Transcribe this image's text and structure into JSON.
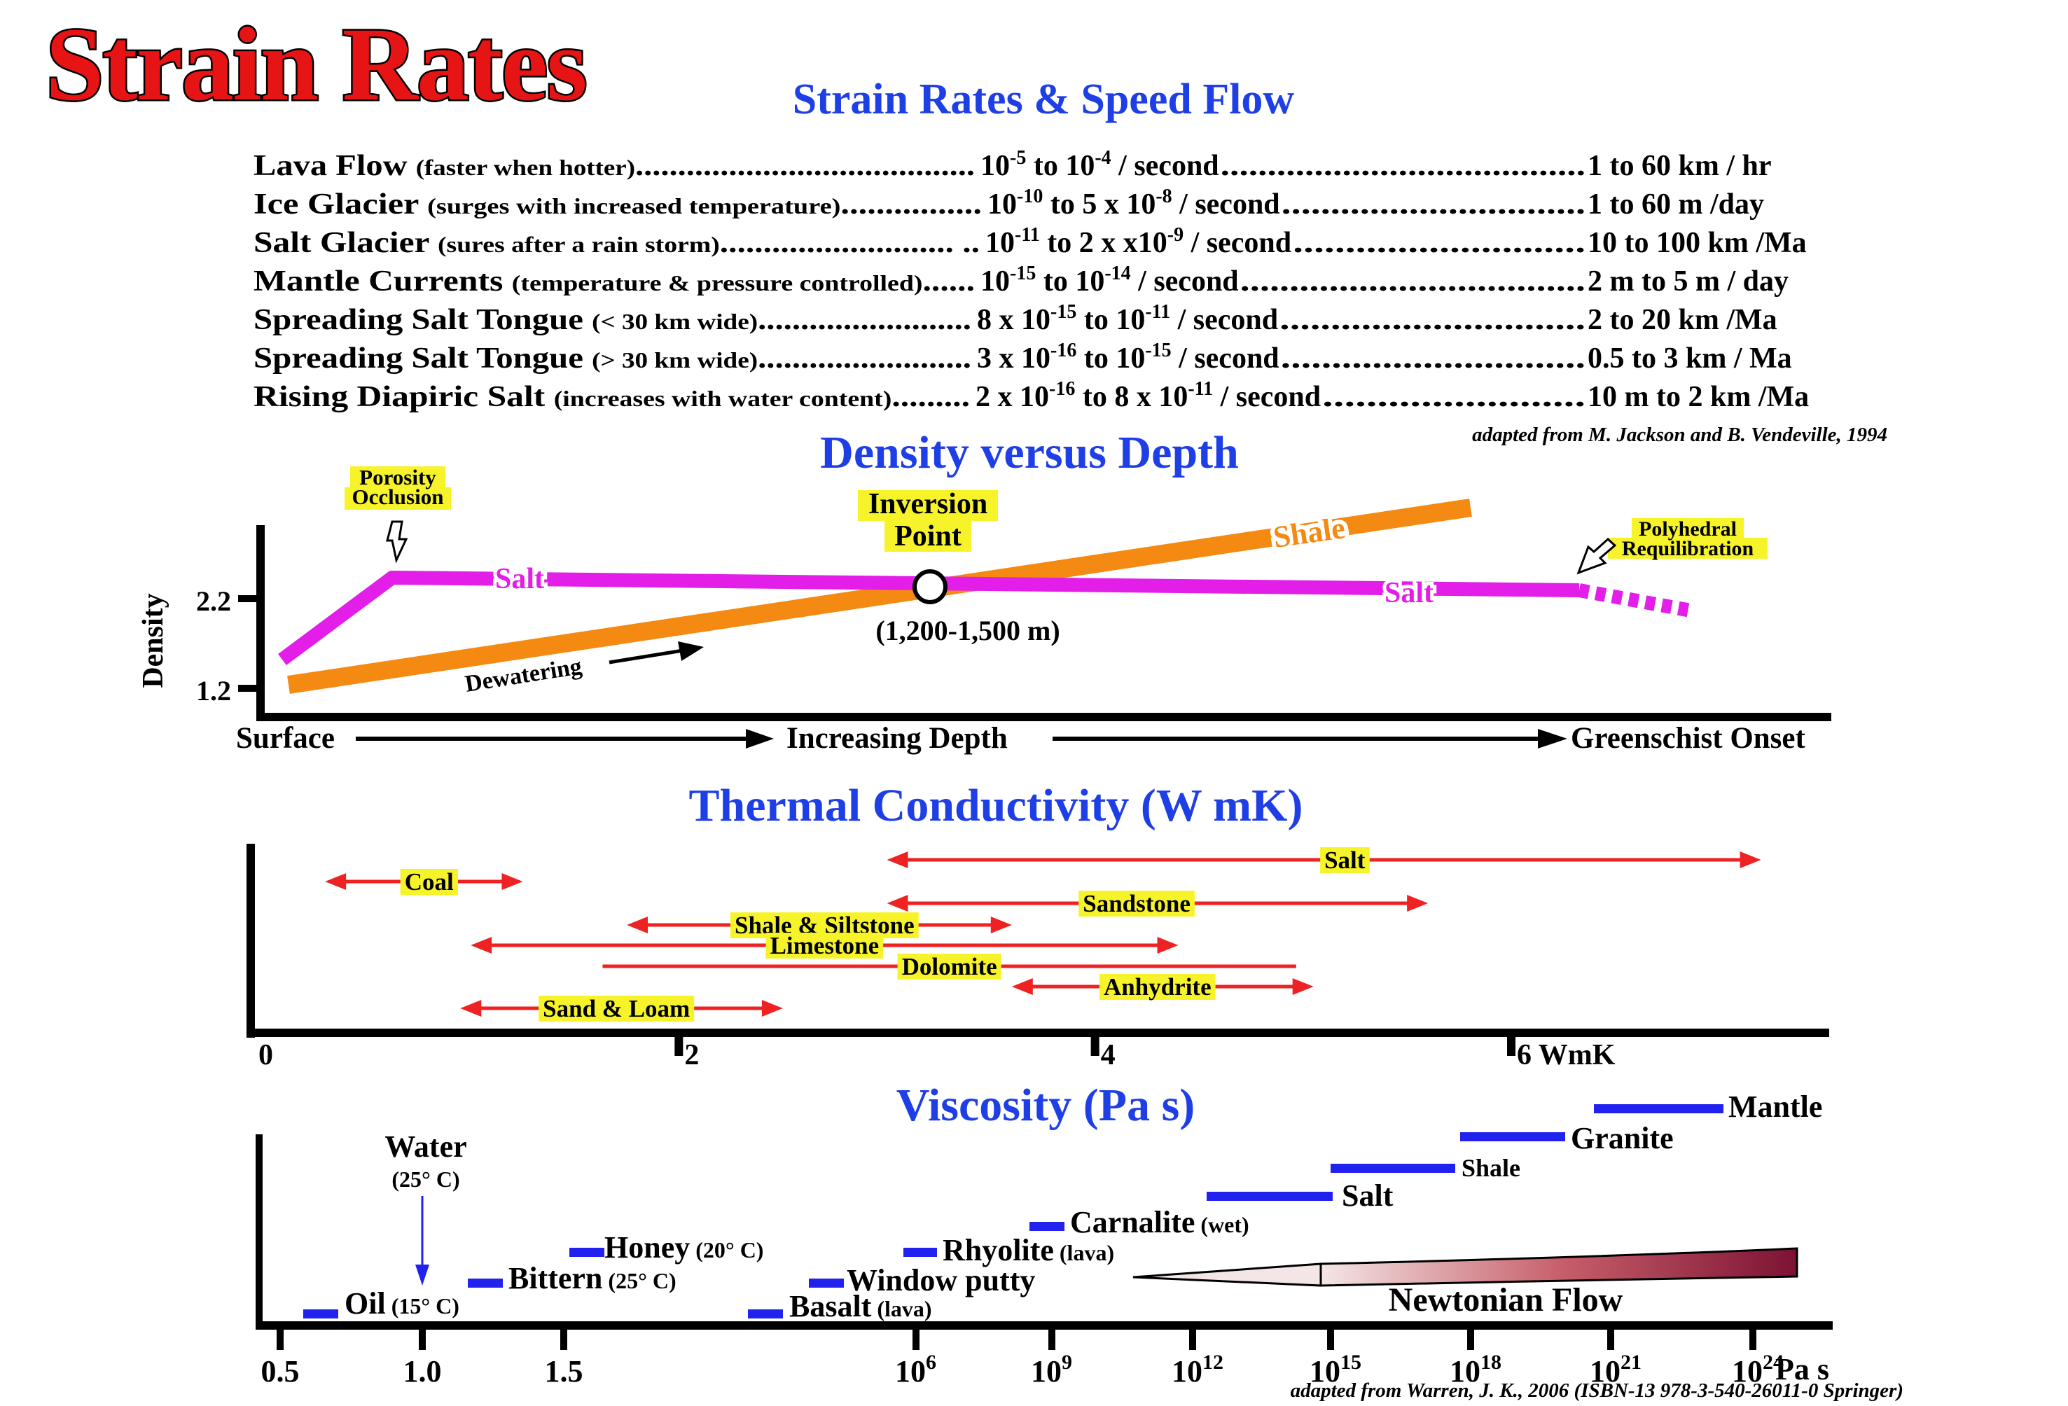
{
  "title": "Strain Rates",
  "strain_section": {
    "heading": "Strain Rates & Speed Flow",
    "rows": [
      {
        "name": "Lava Flow",
        "note": "(faster when hotter)",
        "lead": "........................................",
        "rate": [
          [
            "10"
          ],
          [
            "-5",
            "sup"
          ],
          [
            " to 10"
          ],
          [
            "-4",
            "sup"
          ],
          [
            " / second"
          ]
        ],
        "tail": ".......................................",
        "speed": "1 to 60 km / hr"
      },
      {
        "name": "Ice Glacier",
        "note": "(surges with increased temperature)",
        "lead": "................",
        "rate": [
          [
            "10"
          ],
          [
            "-10",
            "sup"
          ],
          [
            " to 5 x 10"
          ],
          [
            "-8",
            "sup"
          ],
          [
            " / second"
          ]
        ],
        "tail": "...............................",
        "speed": "1 to 60 m /day"
      },
      {
        "name": "Salt Glacier",
        "note": "(sures after a rain storm)",
        "lead": "........................... ..",
        "rate": [
          [
            "10"
          ],
          [
            "-11",
            "sup"
          ],
          [
            " to 2 x x10"
          ],
          [
            "-9",
            "sup"
          ],
          [
            " / second"
          ]
        ],
        "tail": "............................",
        "speed": "10 to 100 km /Ma"
      },
      {
        "name": "Mantle Currents",
        "note": "(temperature & pressure controlled)",
        "lead": "......",
        "rate": [
          [
            "10"
          ],
          [
            "-15",
            "sup"
          ],
          [
            " to 10"
          ],
          [
            "-14",
            "sup"
          ],
          [
            " / second"
          ]
        ],
        "tail": "...................................",
        "speed": " 2 m to 5 m / day"
      },
      {
        "name": "Spreading Salt Tongue",
        "note": "(< 30 km wide)",
        "lead": ".........................",
        "rate": [
          [
            " 8 x 10"
          ],
          [
            "-15",
            "sup"
          ],
          [
            " to 10"
          ],
          [
            "-11",
            "sup"
          ],
          [
            " / second"
          ]
        ],
        "tail": "..............................",
        "speed": "2 to 20 km /Ma"
      },
      {
        "name": "Spreading Salt Tongue",
        "note": "(> 30 km wide)",
        "lead": ".........................",
        "rate": [
          [
            " 3 x 10"
          ],
          [
            "-16",
            "sup"
          ],
          [
            " to 10"
          ],
          [
            "-15",
            "sup"
          ],
          [
            " / second"
          ]
        ],
        "tail": "..............................",
        "speed": "0.5 to 3 km / Ma"
      },
      {
        "name": "Rising Diapiric Salt",
        "note": "(increases with water content)",
        "lead": ".........",
        "rate": [
          [
            "2 x 10"
          ],
          [
            "-16",
            "sup"
          ],
          [
            " to 8 x 10"
          ],
          [
            "-11",
            "sup"
          ],
          [
            " / second"
          ]
        ],
        "tail": "........................",
        "speed": "10 m to 2 km /Ma"
      }
    ],
    "credit": "adapted from M. Jackson and B. Vendeville, 1994"
  },
  "density_section": {
    "heading": "Density versus Depth",
    "y_axis_label": "Density",
    "y_ticks": [
      "2.2",
      "1.2"
    ],
    "annotations": {
      "porosity": [
        "Porosity",
        "Occlusion"
      ],
      "inversion": [
        "Inversion",
        "Point"
      ],
      "inversion_range": "(1,200-1,500 m)",
      "polyhedral": [
        "Polyhedral",
        "Requilibration"
      ],
      "dewatering": "Dewatering",
      "salt_label_1": "Salt",
      "salt_label_2": "Salt",
      "shale_label": "Shale"
    },
    "x_axis": {
      "left": "Surface",
      "middle": "Increasing Depth",
      "right": "Greenschist Onset"
    }
  },
  "thermal_section": {
    "heading": "Thermal Conductivity (W mK)",
    "ticks": [
      "0",
      "2",
      "4",
      "6 WmK"
    ],
    "xlim": [
      0,
      7.5
    ],
    "ranges": [
      {
        "label": "Salt",
        "min": 3.0,
        "max": 7.2,
        "label_at": 5.2
      },
      {
        "label": "Coal",
        "min": 0.3,
        "max": 1.25,
        "label_at": 0.8
      },
      {
        "label": "Sandstone",
        "min": 3.0,
        "max": 5.6,
        "label_at": 4.2
      },
      {
        "label": "Shale & Siltstone",
        "min": 1.75,
        "max": 3.6,
        "label_at": 2.7
      },
      {
        "label": "Limestone",
        "min": 1.0,
        "max": 4.4,
        "label_at": 2.7
      },
      {
        "label": "Dolomite",
        "min": 1.6,
        "max": 5.0,
        "label_at": 3.3
      },
      {
        "label": "Anhydrite",
        "min": 3.6,
        "max": 5.05,
        "label_at": 4.3
      },
      {
        "label": "Sand & Loam",
        "min": 0.95,
        "max": 2.5,
        "label_at": 1.7
      }
    ],
    "colors": {
      "arrow": "#ee2222",
      "label_bg": "#f7f32a"
    }
  },
  "viscosity_section": {
    "heading": "Viscosity (Pa s)",
    "ticks_linear": [
      "0.5",
      "1.0",
      "1.5"
    ],
    "ticks_log": [
      {
        "base": "10",
        "exp": "6"
      },
      {
        "base": "10",
        "exp": "9"
      },
      {
        "base": "10",
        "exp": "12"
      },
      {
        "base": "10",
        "exp": "15"
      },
      {
        "base": "10",
        "exp": "18"
      },
      {
        "base": "10",
        "exp": "21"
      },
      {
        "base": "10",
        "exp": "24"
      }
    ],
    "unit": "Pa s",
    "materials": [
      {
        "name": "Oil",
        "note": "(15° C)"
      },
      {
        "name": "Bittern",
        "note": "(25° C)"
      },
      {
        "name": "Honey",
        "note": "(20° C)"
      },
      {
        "name": "Basalt",
        "note": "(lava)"
      },
      {
        "name": "Window putty",
        "note": ""
      },
      {
        "name": "Rhyolite",
        "note": "(lava)"
      },
      {
        "name": "Carnalite",
        "note": "(wet)"
      },
      {
        "name": "Salt",
        "note": ""
      },
      {
        "name": "Shale",
        "note": ""
      },
      {
        "name": "Granite",
        "note": ""
      },
      {
        "name": "Mantle",
        "note": ""
      }
    ],
    "water": {
      "name": "Water",
      "note": "(25° C)"
    },
    "newtonian": "Newtonian Flow",
    "credit": "adapted from Warren, J. K., 2006 (ISBN-13 978-3-540-26011-0 Springer)",
    "colors": {
      "bar": "#2222ee"
    }
  },
  "colors": {
    "title_red": "#e61414",
    "heading_blue": "#1f3fe6",
    "salt_magenta": "#e21ee8",
    "shale_orange": "#f58a12",
    "note_yellow": "#f7f32a"
  }
}
